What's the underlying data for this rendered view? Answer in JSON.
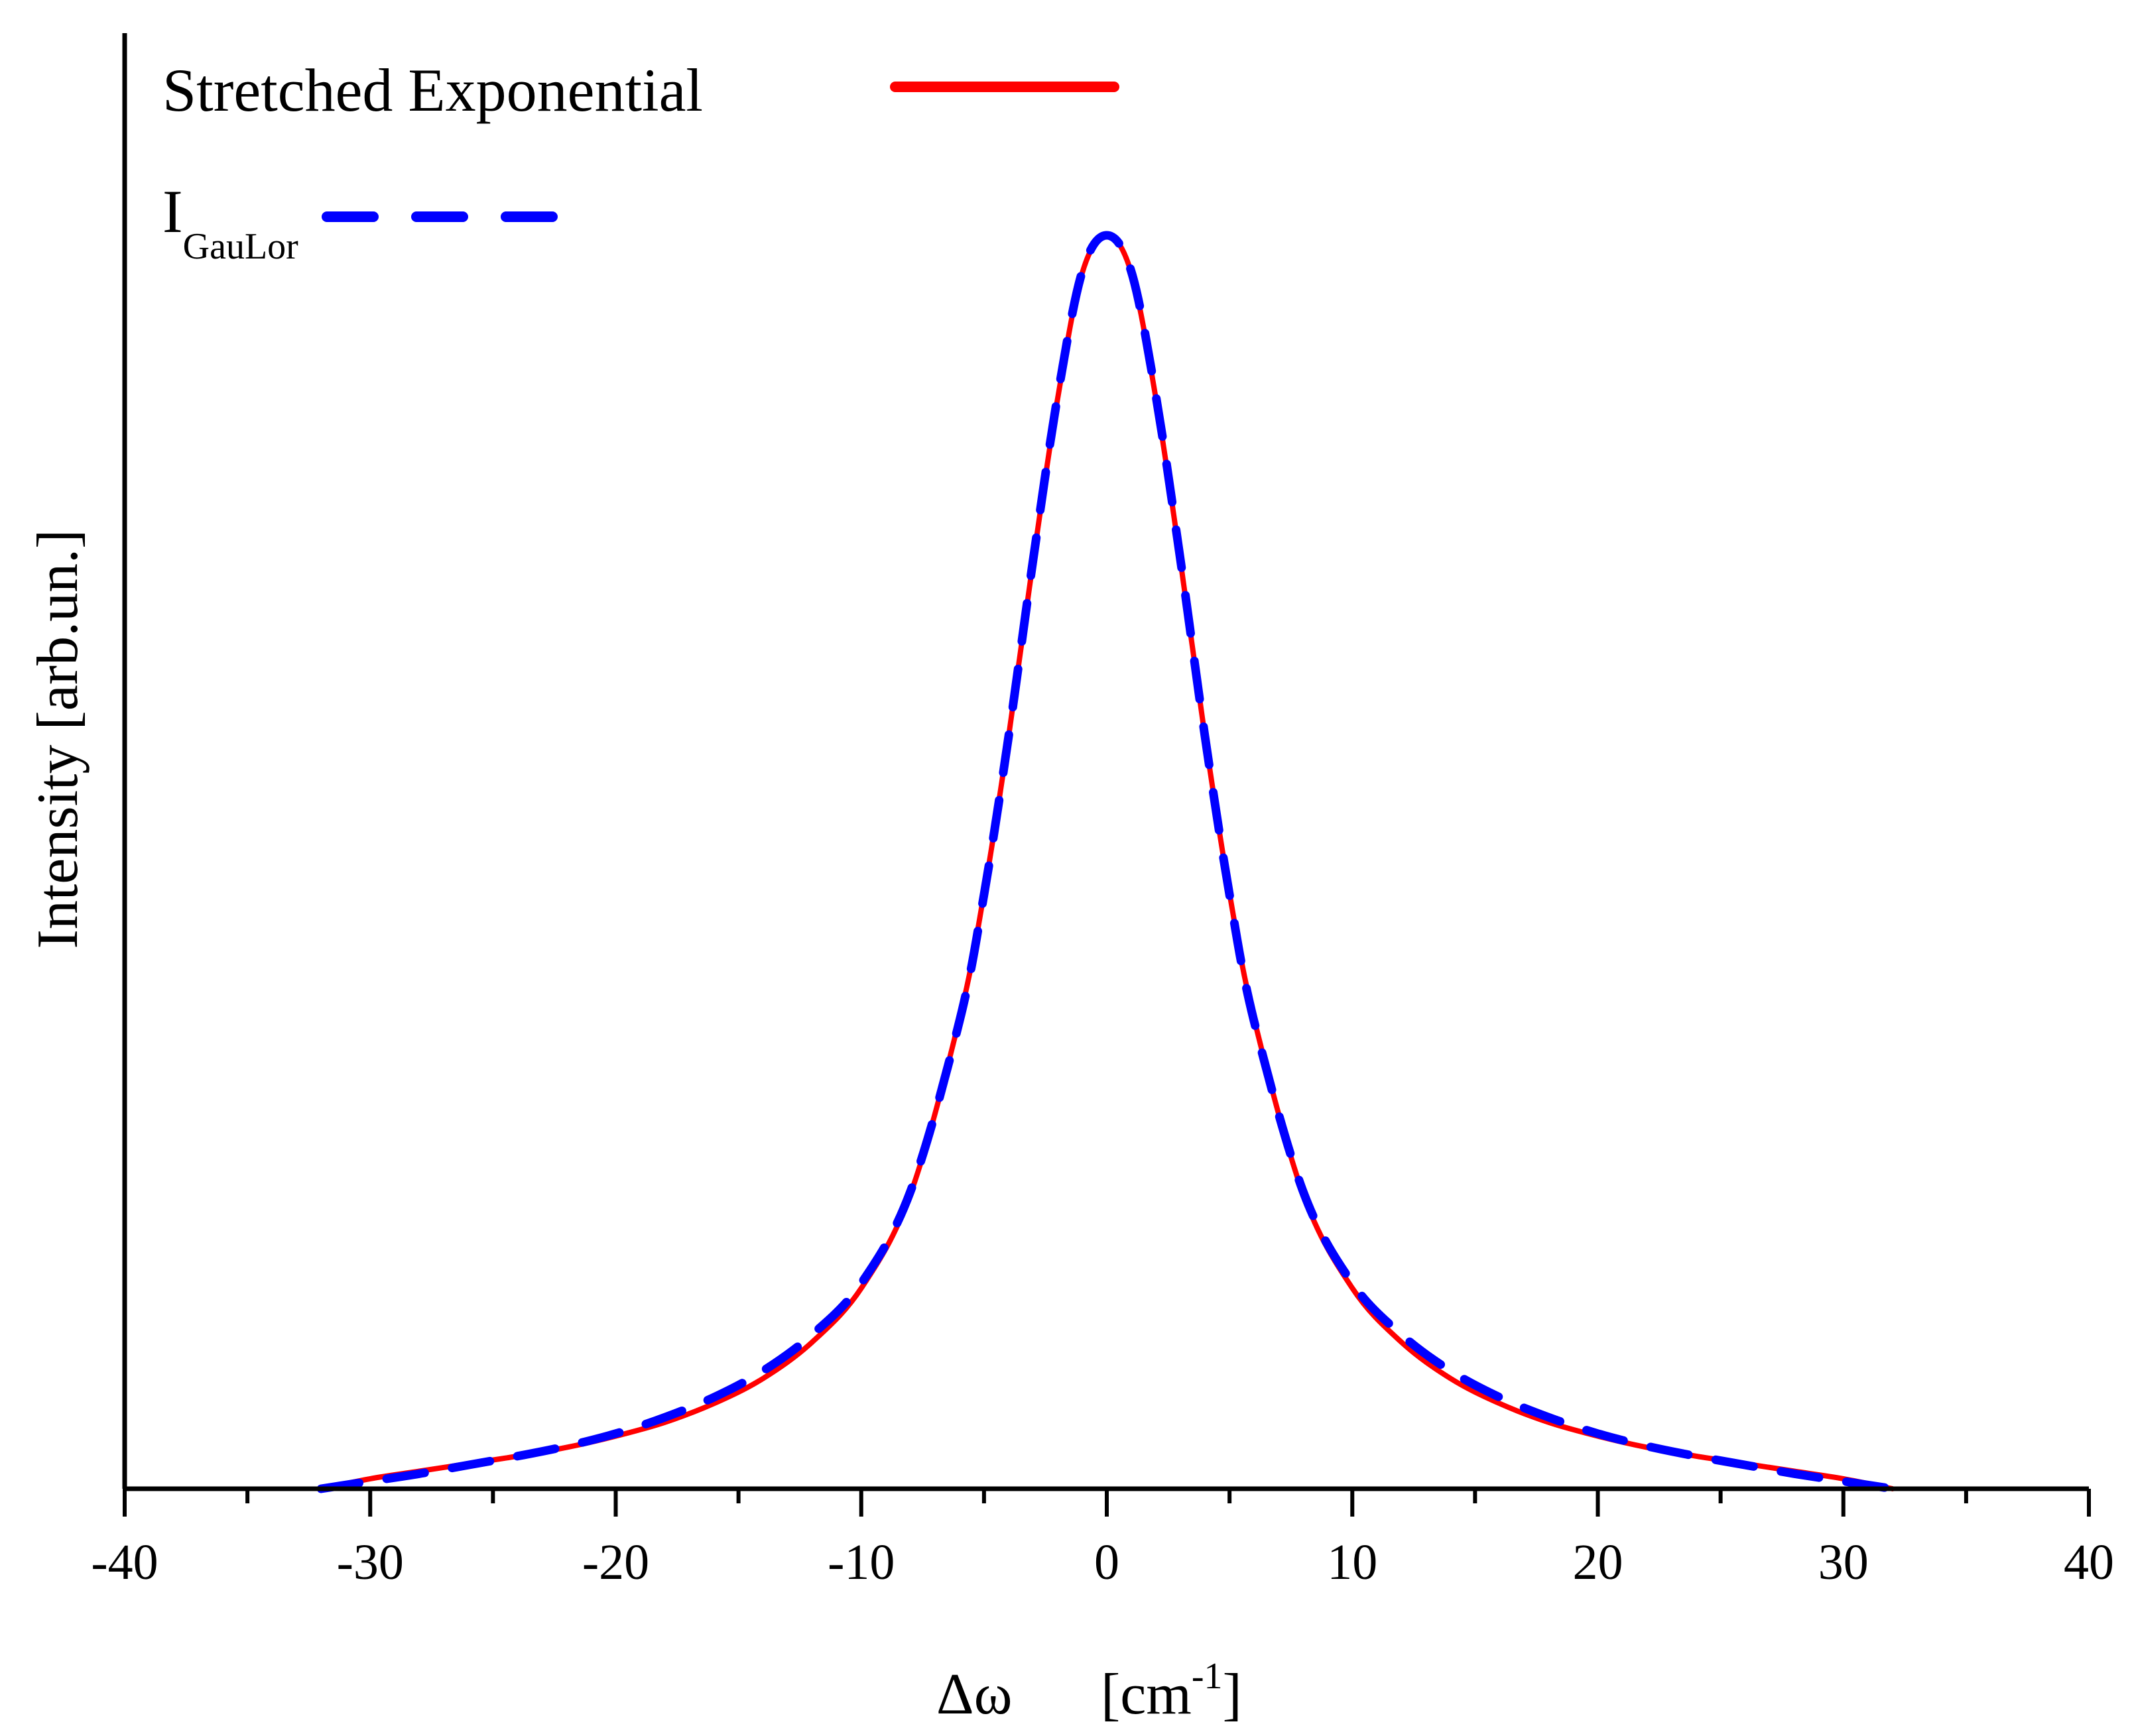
{
  "chart_data": {
    "type": "line",
    "title": "",
    "xlabel_main": "Δω",
    "xlabel_unit_open": "[cm",
    "xlabel_unit_sup": "-1",
    "xlabel_unit_close": "]",
    "ylabel": "Intensity [arb.un.]",
    "xlim": [
      -40,
      40
    ],
    "ylim": [
      0,
      1.1
    ],
    "x_major_ticks": [
      -40,
      -30,
      -20,
      -10,
      0,
      10,
      20,
      30,
      40
    ],
    "x_tick_labels": [
      "-40",
      "-30",
      "-20",
      "-10",
      "0",
      "10",
      "20",
      "30",
      "40"
    ],
    "x_minor_ticks": [
      -35,
      -25,
      -15,
      -5,
      5,
      15,
      25,
      35
    ],
    "legend_position": "top-left",
    "series": [
      {
        "name": "Stretched Exponential",
        "legend_label": "Stretched Exponential",
        "color": "#ff0000",
        "style": "solid",
        "x": [
          -32,
          -30,
          -28,
          -26,
          -24,
          -22,
          -20,
          -18,
          -16,
          -14,
          -12,
          -10,
          -8,
          -6,
          -5,
          -4,
          -3,
          -2,
          -1,
          0,
          1,
          2,
          3,
          4,
          5,
          6,
          8,
          10,
          12,
          14,
          16,
          18,
          20,
          22,
          24,
          26,
          28,
          30,
          32
        ],
        "y": [
          0.0,
          0.008,
          0.014,
          0.02,
          0.026,
          0.033,
          0.042,
          0.053,
          0.068,
          0.088,
          0.117,
          0.16,
          0.235,
          0.375,
          0.475,
          0.6,
          0.74,
          0.87,
          0.97,
          1.0,
          0.97,
          0.87,
          0.74,
          0.6,
          0.475,
          0.375,
          0.235,
          0.16,
          0.117,
          0.088,
          0.068,
          0.053,
          0.042,
          0.033,
          0.026,
          0.02,
          0.014,
          0.008,
          0.0
        ]
      },
      {
        "name": "IGauLor",
        "legend_label_main": "I",
        "legend_label_sub": "GauLor",
        "color": "#0000ff",
        "style": "dashed",
        "x": [
          -32,
          -30,
          -28,
          -26,
          -24,
          -22,
          -20,
          -18,
          -16,
          -14,
          -12,
          -10,
          -8,
          -6,
          -5,
          -4,
          -3,
          -2,
          -1,
          0,
          1,
          2,
          3,
          4,
          5,
          6,
          8,
          10,
          12,
          14,
          16,
          18,
          20,
          22,
          24,
          26,
          28,
          30,
          32
        ],
        "y": [
          0.0,
          0.006,
          0.012,
          0.019,
          0.026,
          0.034,
          0.044,
          0.057,
          0.073,
          0.094,
          0.123,
          0.164,
          0.237,
          0.373,
          0.474,
          0.6,
          0.741,
          0.872,
          0.971,
          1.0,
          0.971,
          0.872,
          0.741,
          0.6,
          0.474,
          0.373,
          0.237,
          0.164,
          0.123,
          0.094,
          0.073,
          0.057,
          0.044,
          0.034,
          0.026,
          0.019,
          0.012,
          0.006,
          0.0
        ]
      }
    ]
  }
}
